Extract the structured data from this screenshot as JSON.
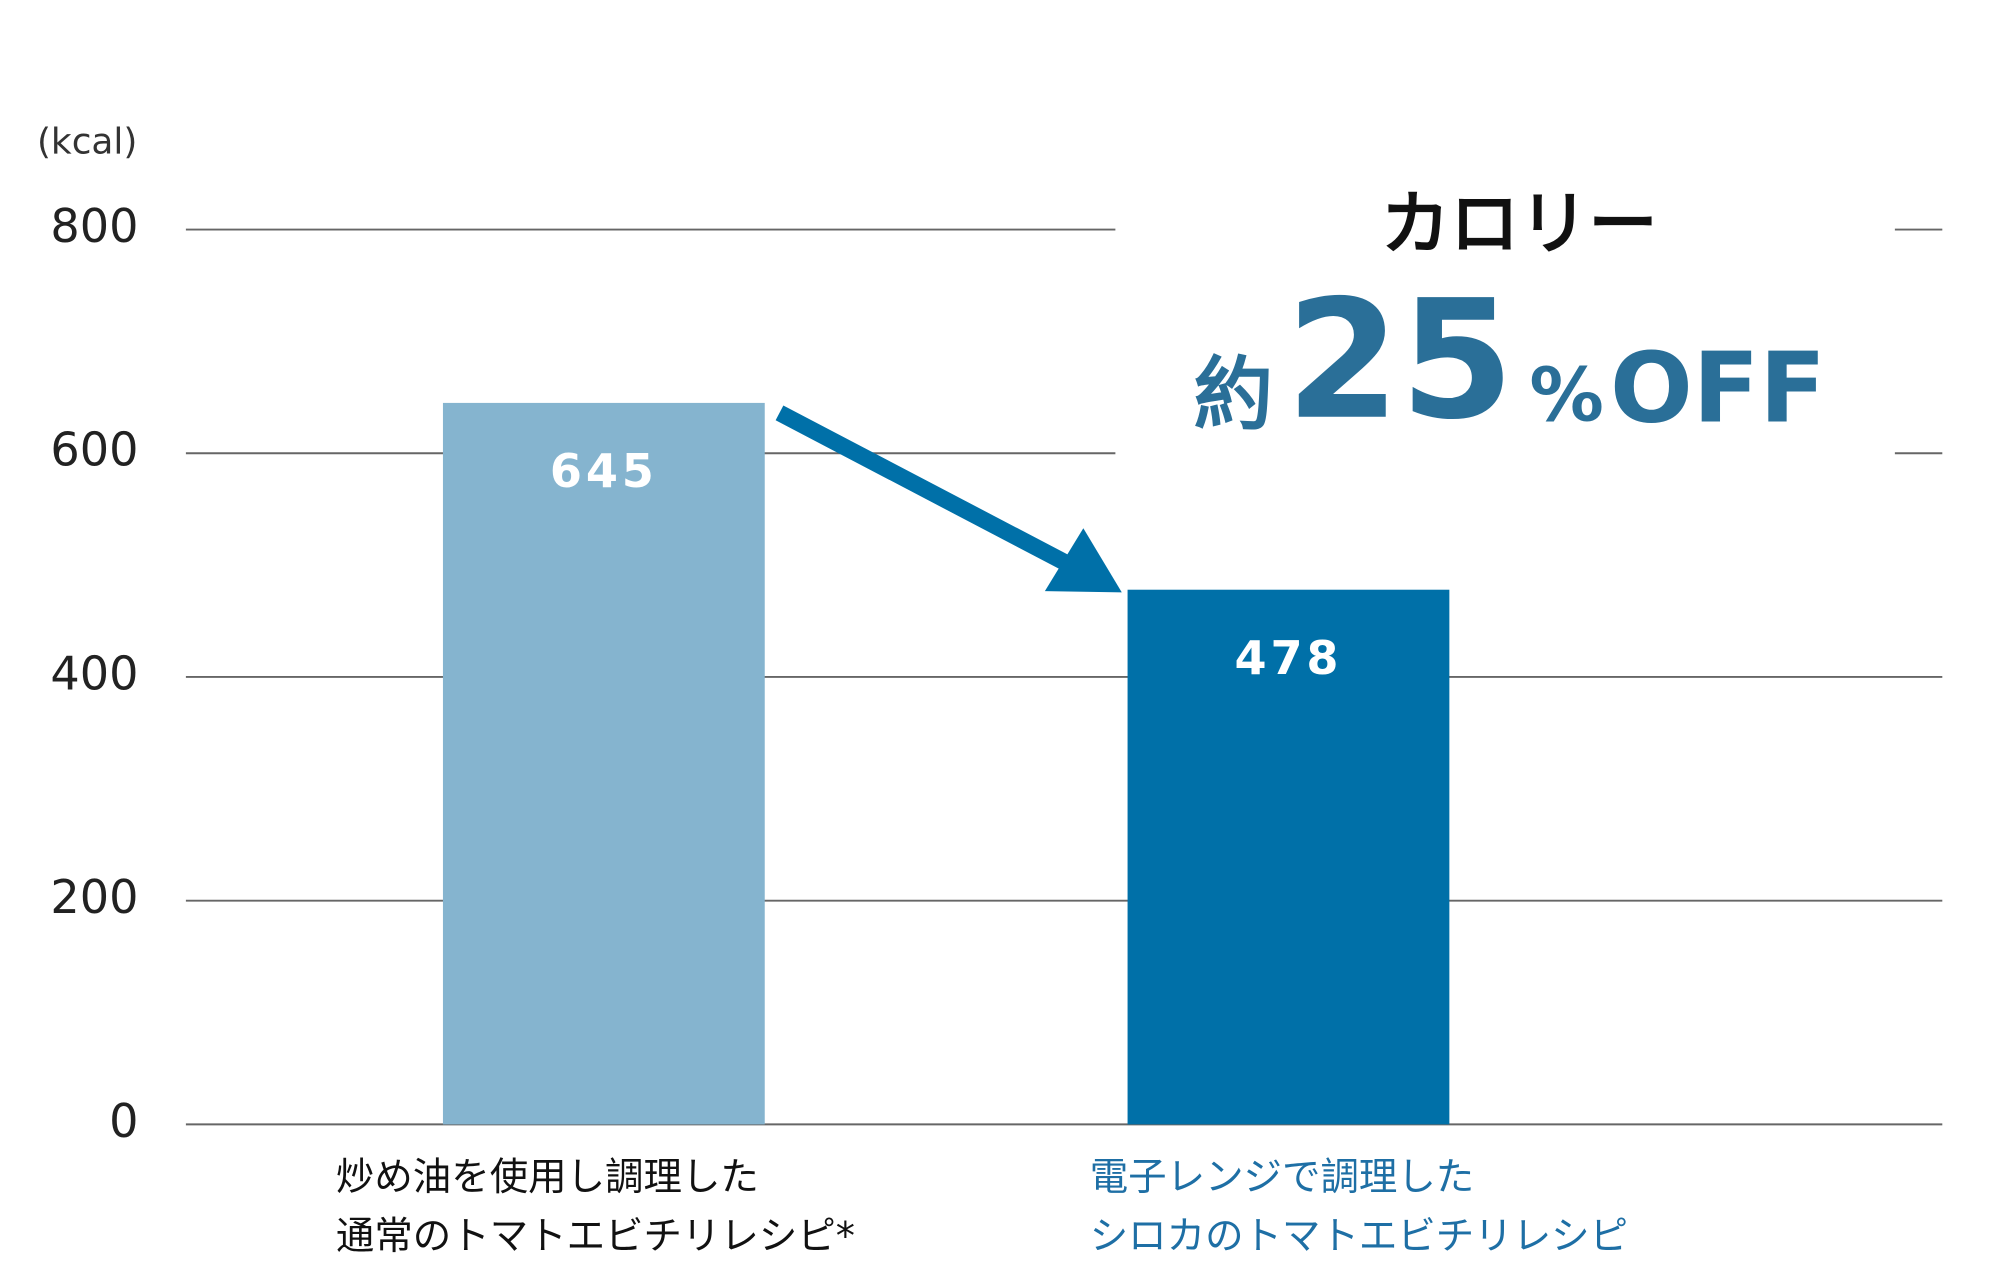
{
  "chart_data": {
    "type": "bar",
    "y_label": "(kcal)",
    "categories": [
      [
        "炒め油を使用し調理した",
        "通常のトマトエビチリレシピ*"
      ],
      [
        "電子レンジで調理した",
        "シロカのトマトエビチリレシピ"
      ]
    ],
    "values": [
      645,
      478
    ],
    "colors": [
      "#85b4cf",
      "#0070a8"
    ],
    "label_colors": [
      "#111111",
      "#1e6fa5"
    ],
    "ylim": [
      0,
      800
    ],
    "yticks": [
      0,
      200,
      400,
      600,
      800
    ],
    "grid": true,
    "annotation": {
      "title": "カロリー",
      "prefix": "約",
      "number": "25",
      "unit": "%",
      "suffix": "OFF"
    }
  }
}
